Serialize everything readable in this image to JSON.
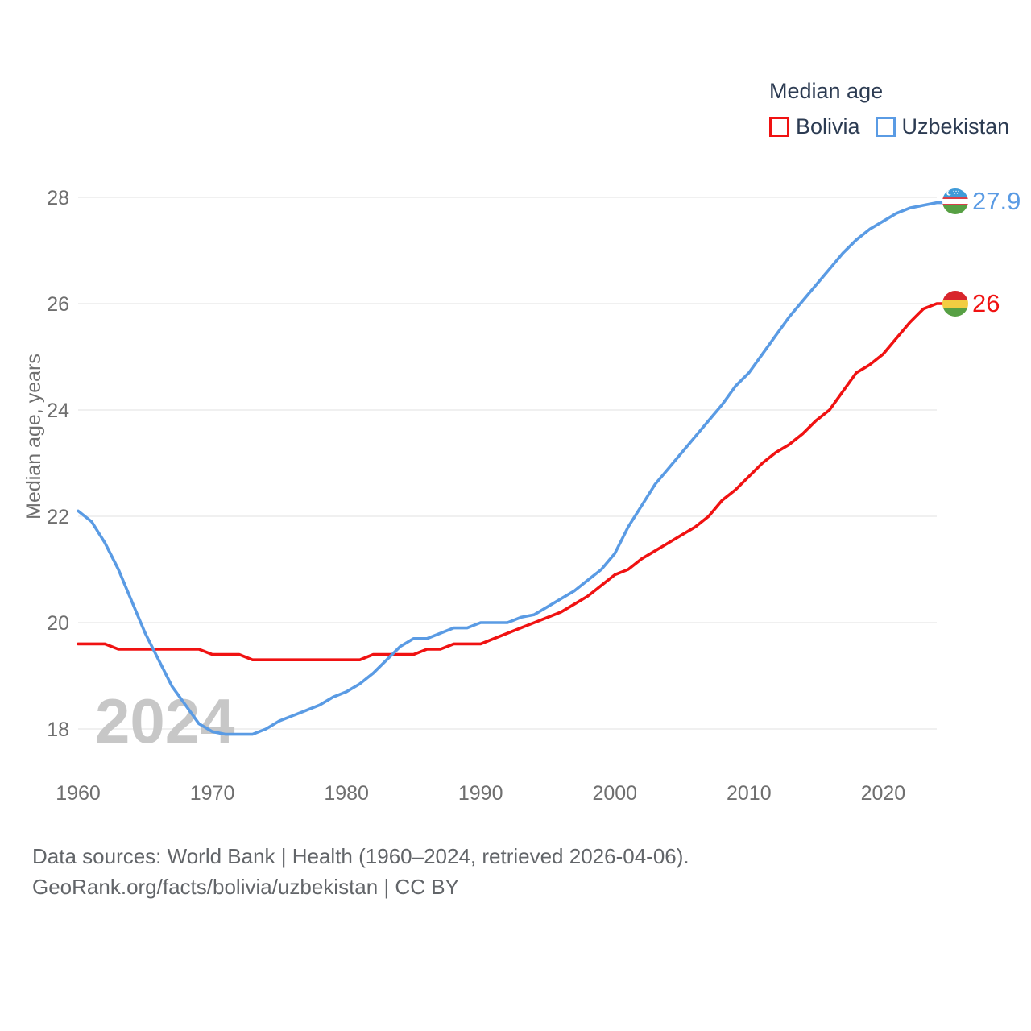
{
  "legend": {
    "title": "Median age",
    "items": [
      {
        "label": "Bolivia",
        "color": "#f01212"
      },
      {
        "label": "Uzbekistan",
        "color": "#5a9be4"
      }
    ]
  },
  "end_labels": [
    {
      "series": "Uzbekistan",
      "value": "27.9",
      "flag": "uzbekistan-flag",
      "color": "#5a9be4"
    },
    {
      "series": "Bolivia",
      "value": "26",
      "flag": "bolivia-flag",
      "color": "#f01212"
    }
  ],
  "watermark": "2024",
  "footer": {
    "line1": "Data sources: World Bank | Health (1960–2024, retrieved 2026-04-06).",
    "line2": "GeoRank.org/facts/bolivia/uzbekistan | CC BY"
  },
  "colors": {
    "background": "#ffffff",
    "grid": "#ececec",
    "tick_text": "#6f6f6f",
    "axis_title": "#6f6f6f",
    "watermark": "#c7c7c7",
    "legend_text": "#2c3b52",
    "footer_text": "#626569",
    "bolivia": "#f01212",
    "uzbekistan": "#5a9be4"
  },
  "chart_data": {
    "type": "line",
    "title": "Median age",
    "ylabel": "Median age, years",
    "x_start": 1960,
    "x_end": 2024,
    "x_step": 1,
    "xticks": [
      1960,
      1970,
      1980,
      1990,
      2000,
      2010,
      2020
    ],
    "yticks": [
      18,
      20,
      22,
      24,
      26,
      28
    ],
    "ylim": [
      17.6,
      28.4
    ],
    "grid": "horizontal",
    "legend_position": "top-right",
    "series": [
      {
        "name": "Bolivia",
        "color": "#f01212",
        "end_label": "26",
        "values": [
          19.6,
          19.6,
          19.6,
          19.5,
          19.5,
          19.5,
          19.5,
          19.5,
          19.5,
          19.5,
          19.4,
          19.4,
          19.4,
          19.3,
          19.3,
          19.3,
          19.3,
          19.3,
          19.3,
          19.3,
          19.3,
          19.3,
          19.4,
          19.4,
          19.4,
          19.4,
          19.5,
          19.5,
          19.6,
          19.6,
          19.6,
          19.7,
          19.8,
          19.9,
          20.0,
          20.1,
          20.2,
          20.35,
          20.5,
          20.7,
          20.9,
          21.0,
          21.2,
          21.35,
          21.5,
          21.65,
          21.8,
          22.0,
          22.3,
          22.5,
          22.75,
          23.0,
          23.2,
          23.35,
          23.55,
          23.8,
          24.0,
          24.35,
          24.7,
          24.85,
          25.05,
          25.35,
          25.65,
          25.9,
          26.0
        ]
      },
      {
        "name": "Uzbekistan",
        "color": "#5a9be4",
        "end_label": "27.9",
        "values": [
          22.1,
          21.9,
          21.5,
          21.0,
          20.4,
          19.8,
          19.3,
          18.8,
          18.45,
          18.1,
          17.95,
          17.9,
          17.9,
          17.9,
          18.0,
          18.15,
          18.25,
          18.35,
          18.45,
          18.6,
          18.7,
          18.85,
          19.05,
          19.3,
          19.55,
          19.7,
          19.7,
          19.8,
          19.9,
          19.9,
          20.0,
          20.0,
          20.0,
          20.1,
          20.15,
          20.3,
          20.45,
          20.6,
          20.8,
          21.0,
          21.3,
          21.8,
          22.2,
          22.6,
          22.9,
          23.2,
          23.5,
          23.8,
          24.1,
          24.45,
          24.7,
          25.05,
          25.4,
          25.75,
          26.05,
          26.35,
          26.65,
          26.95,
          27.2,
          27.4,
          27.55,
          27.7,
          27.8,
          27.85,
          27.9
        ]
      }
    ]
  }
}
